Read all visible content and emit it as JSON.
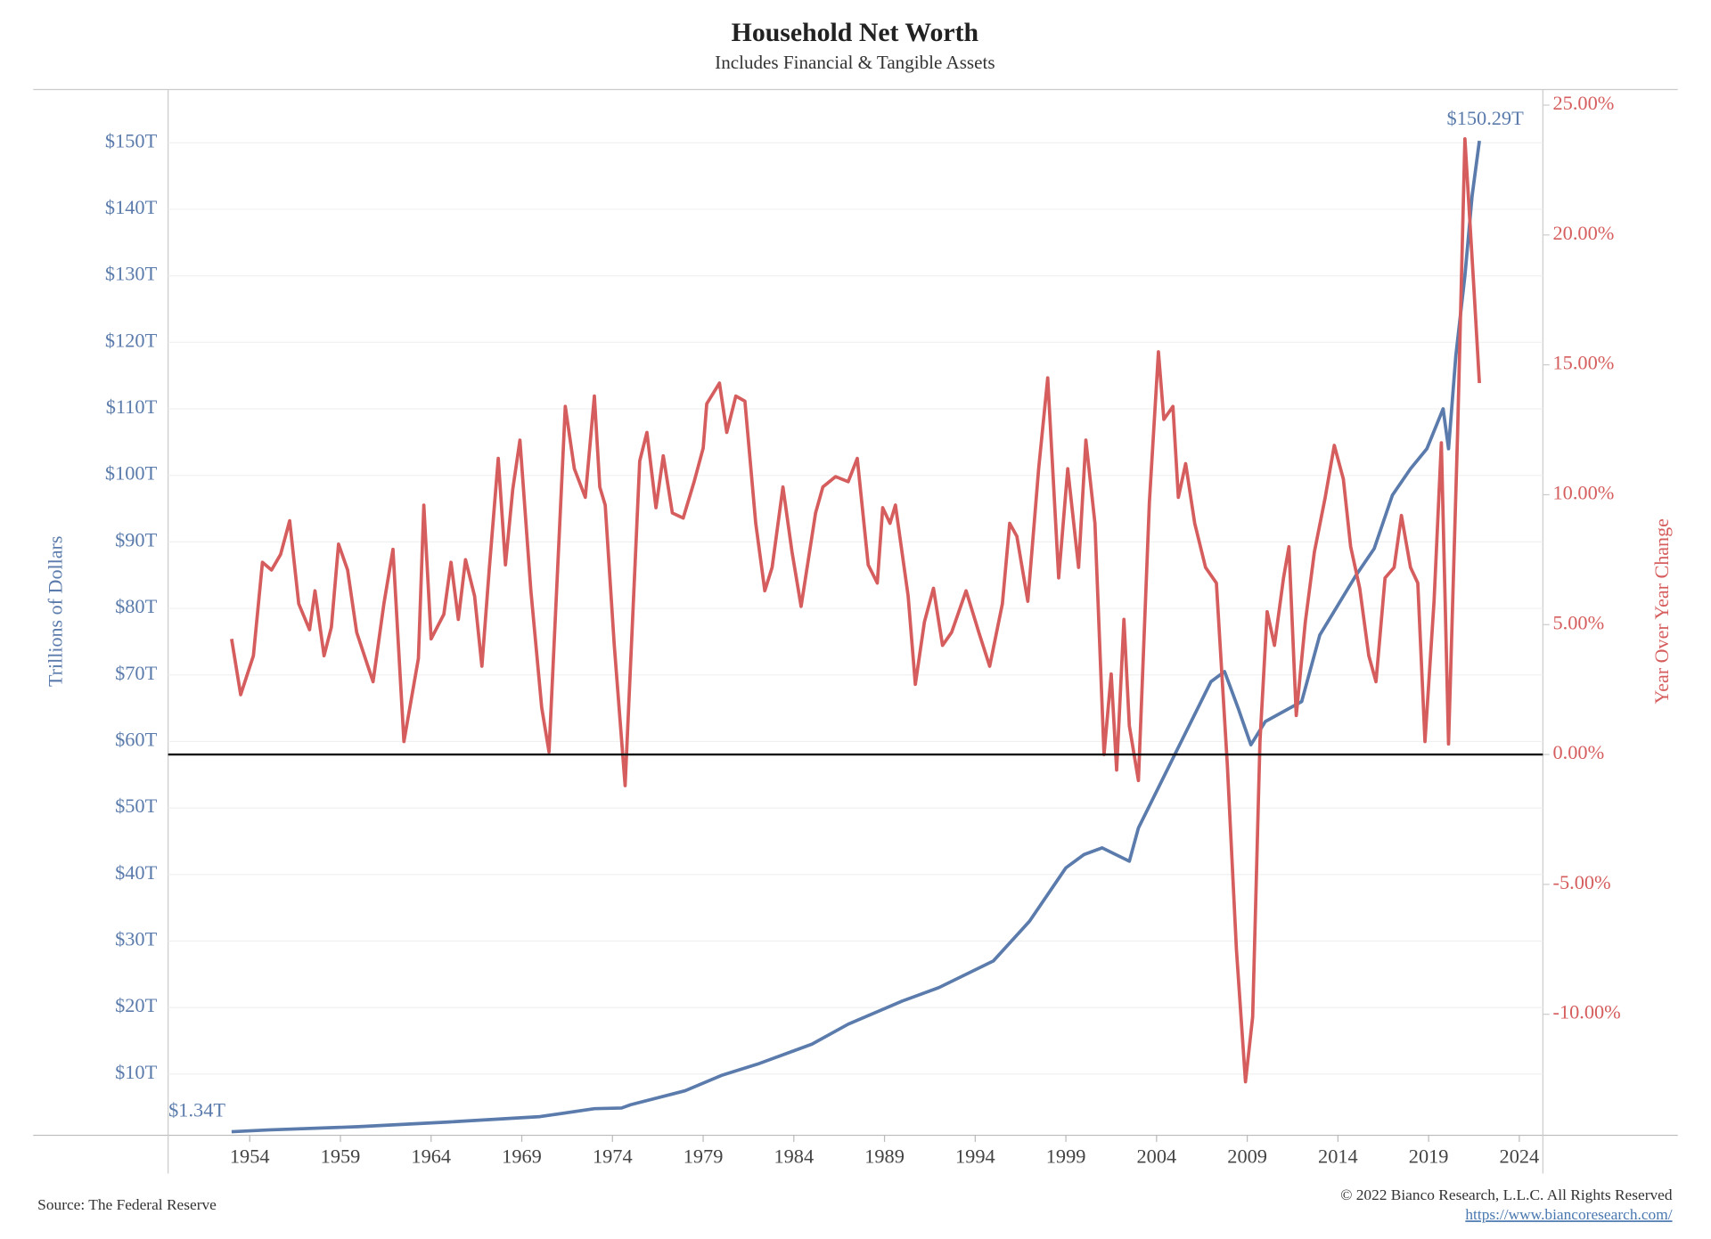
{
  "chart_data": {
    "type": "line",
    "title": "Household Net Worth",
    "subtitle": "Includes Financial & Tangible Assets",
    "y_label": "Trillions of Dollars",
    "y2_label": "Year Over Year Change",
    "source": "Source: The Federal Reserve",
    "copyright": "© 2022 Bianco Research, L.L.C. All Rights Reserved",
    "url": "https://www.biancoresearch.com/",
    "xlim": [
      1949.5,
      2025.3
    ],
    "xticks": [
      1954,
      1959,
      1964,
      1969,
      1974,
      1979,
      1984,
      1989,
      1994,
      1999,
      2004,
      2009,
      2014,
      2019,
      2024
    ],
    "ylim": [
      0.8,
      158
    ],
    "yticks": [
      {
        "value": 10,
        "label": "$10T"
      },
      {
        "value": 20,
        "label": "$20T"
      },
      {
        "value": 30,
        "label": "$30T"
      },
      {
        "value": 40,
        "label": "$40T"
      },
      {
        "value": 50,
        "label": "$50T"
      },
      {
        "value": 60,
        "label": "$60T"
      },
      {
        "value": 70,
        "label": "$70T"
      },
      {
        "value": 80,
        "label": "$80T"
      },
      {
        "value": 90,
        "label": "$90T"
      },
      {
        "value": 100,
        "label": "$100T"
      },
      {
        "value": 110,
        "label": "$110T"
      },
      {
        "value": 120,
        "label": "$120T"
      },
      {
        "value": 130,
        "label": "$130T"
      },
      {
        "value": 140,
        "label": "$140T"
      },
      {
        "value": 150,
        "label": "$150T"
      }
    ],
    "y2lim": [
      -14.66,
      25.6
    ],
    "y2ticks": [
      {
        "value": -10,
        "label": "-10.00%"
      },
      {
        "value": -5,
        "label": "-5.00%"
      },
      {
        "value": 0,
        "label": "0.00%"
      },
      {
        "value": 5,
        "label": "5.00%"
      },
      {
        "value": 10,
        "label": "10.00%"
      },
      {
        "value": 15,
        "label": "15.00%"
      },
      {
        "value": 20,
        "label": "20.00%"
      },
      {
        "value": 25,
        "label": "25.00%"
      }
    ],
    "y2_reference_line": 0,
    "grid": true,
    "series": [
      {
        "color": "#5a7bab",
        "axis": "y",
        "x": [
          1953.0,
          1955,
          1960,
          1965,
          1970,
          1973,
          1974.5,
          1975,
          1978,
          1980,
          1982,
          1985,
          1987,
          1990,
          1992,
          1995,
          1997,
          1999,
          2000,
          2001,
          2002.5,
          2003,
          2005,
          2007,
          2007.75,
          2008.5,
          2009.2,
          2010,
          2012,
          2013,
          2015,
          2016,
          2017,
          2018,
          2018.9,
          2019.8,
          2020.1,
          2020.5,
          2021,
          2021.4,
          2021.8
        ],
        "values": [
          1.34,
          1.6,
          2.1,
          2.8,
          3.6,
          4.8,
          4.9,
          5.4,
          7.5,
          9.8,
          11.5,
          14.5,
          17.5,
          21,
          23,
          27,
          33,
          41,
          43,
          44,
          42,
          47,
          58,
          69,
          70.5,
          65,
          59.5,
          63,
          66,
          76,
          85,
          89,
          97,
          101,
          104,
          110,
          104,
          118,
          130,
          142,
          150.29
        ],
        "value_labels": [
          "$1.34T",
          null,
          null,
          null,
          null,
          null,
          null,
          null,
          null,
          null,
          null,
          null,
          null,
          null,
          null,
          null,
          null,
          null,
          null,
          null,
          null,
          null,
          null,
          null,
          null,
          null,
          null,
          null,
          null,
          null,
          null,
          null,
          null,
          null,
          null,
          null,
          null,
          null,
          null,
          null,
          "$150.29T"
        ]
      },
      {
        "color": "#d65d5d",
        "axis": "y2",
        "x": [
          1953.0,
          1953.5,
          1954.2,
          1954.7,
          1955.2,
          1955.7,
          1956.2,
          1956.7,
          1957.3,
          1957.6,
          1958.1,
          1958.5,
          1958.9,
          1959.4,
          1959.9,
          1960.8,
          1961.4,
          1961.9,
          1962.5,
          1963.3,
          1963.6,
          1964.0,
          1964.7,
          1965.1,
          1965.5,
          1965.9,
          1966.4,
          1966.8,
          1967.2,
          1967.7,
          1968.1,
          1968.5,
          1968.9,
          1969.5,
          1970.1,
          1970.5,
          1971.4,
          1971.9,
          1972.5,
          1973.0,
          1973.3,
          1973.6,
          1974.1,
          1974.7,
          1975.5,
          1975.9,
          1976.4,
          1976.8,
          1977.3,
          1977.9,
          1978.5,
          1979.0,
          1979.2,
          1979.9,
          1980.3,
          1980.8,
          1981.3,
          1981.9,
          1982.4,
          1982.8,
          1983.4,
          1983.9,
          1984.4,
          1985.2,
          1985.6,
          1986.3,
          1987.0,
          1987.5,
          1988.1,
          1988.6,
          1988.9,
          1989.3,
          1989.6,
          1990.3,
          1990.7,
          1991.2,
          1991.7,
          1992.2,
          1992.7,
          1993.5,
          1994.2,
          1994.8,
          1995.5,
          1995.9,
          1996.3,
          1996.9,
          1997.5,
          1998.0,
          1998.6,
          1999.1,
          1999.7,
          2000.1,
          2000.6,
          2001.1,
          2001.5,
          2001.8,
          2002.2,
          2002.5,
          2003.0,
          2003.6,
          2004.1,
          2004.4,
          2004.9,
          2005.2,
          2005.6,
          2006.1,
          2006.7,
          2007.3,
          2007.9,
          2008.4,
          2008.9,
          2009.3,
          2009.7,
          2010.1,
          2010.5,
          2011.0,
          2011.3,
          2011.7,
          2012.2,
          2012.7,
          2013.3,
          2013.8,
          2014.3,
          2014.7,
          2015.2,
          2015.7,
          2016.1,
          2016.6,
          2017.1,
          2017.5,
          2018.0,
          2018.4,
          2018.8,
          2019.3,
          2019.7,
          2020.1,
          2020.6,
          2021.0,
          2021.5,
          2021.8
        ],
        "values": [
          4.45,
          2.3,
          3.8,
          7.4,
          7.1,
          7.7,
          9.0,
          5.8,
          4.8,
          6.3,
          3.8,
          4.9,
          8.1,
          7.1,
          4.7,
          2.8,
          5.8,
          7.9,
          0.5,
          3.7,
          9.6,
          4.45,
          5.4,
          7.4,
          5.2,
          7.5,
          6.1,
          3.4,
          7.1,
          11.4,
          7.3,
          10.2,
          12.1,
          6.3,
          1.8,
          0.1,
          13.4,
          11.0,
          9.9,
          13.8,
          10.3,
          9.6,
          4.2,
          -1.2,
          11.3,
          12.4,
          9.5,
          11.5,
          9.3,
          9.1,
          10.5,
          11.8,
          13.5,
          14.3,
          12.4,
          13.8,
          13.6,
          8.9,
          6.3,
          7.2,
          10.3,
          7.8,
          5.7,
          9.3,
          10.3,
          10.7,
          10.5,
          11.4,
          7.3,
          6.6,
          9.5,
          8.9,
          9.6,
          6.1,
          2.7,
          5.1,
          6.4,
          4.2,
          4.7,
          6.3,
          4.7,
          3.4,
          5.8,
          8.9,
          8.4,
          5.9,
          11.0,
          14.5,
          6.8,
          11.0,
          7.2,
          12.1,
          8.9,
          0.0,
          3.1,
          -0.6,
          5.2,
          1.1,
          -1.0,
          9.7,
          15.5,
          12.9,
          13.4,
          9.9,
          11.2,
          8.9,
          7.2,
          6.6,
          -0.4,
          -7.5,
          -12.6,
          -10.1,
          0.5,
          5.5,
          4.2,
          6.8,
          8.0,
          1.5,
          5.1,
          7.8,
          9.9,
          11.9,
          10.6,
          8.0,
          6.4,
          3.8,
          2.8,
          6.8,
          7.2,
          9.2,
          7.2,
          6.6,
          0.5,
          5.9,
          12.0,
          0.4,
          12.4,
          23.7,
          17.9,
          14.3
        ]
      }
    ]
  }
}
